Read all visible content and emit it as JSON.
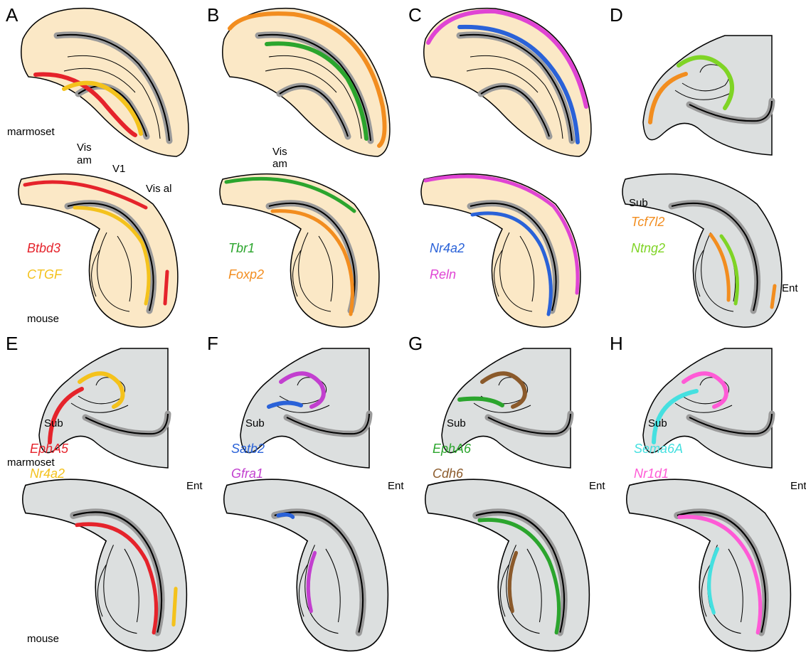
{
  "panels": [
    {
      "letter": "A",
      "species_top": "marmoset",
      "species_bottom": "mouse",
      "genes": [
        {
          "name": "Btbd3",
          "color": "#e5232b"
        },
        {
          "name": "CTGF",
          "color": "#f4c21c"
        }
      ],
      "areas": [
        "Vis",
        "am",
        "V1",
        "Vis al"
      ]
    },
    {
      "letter": "B",
      "genes": [
        {
          "name": "Tbr1",
          "color": "#2ba52d"
        },
        {
          "name": "Foxp2",
          "color": "#f28d1f"
        }
      ],
      "areas": [
        "Vis",
        "am"
      ]
    },
    {
      "letter": "C",
      "genes": [
        {
          "name": "Nr4a2",
          "color": "#2a62d8"
        },
        {
          "name": "Reln",
          "color": "#e044d4"
        }
      ],
      "areas": []
    },
    {
      "letter": "D",
      "genes": [
        {
          "name": "Tcf7l2",
          "color": "#f28d1f"
        },
        {
          "name": "Ntng2",
          "color": "#7fd425"
        }
      ],
      "areas": [
        "Sub",
        "Ent"
      ]
    },
    {
      "letter": "E",
      "species_top": "marmoset",
      "species_bottom": "mouse",
      "genes": [
        {
          "name": "EphA5",
          "color": "#e5232b"
        },
        {
          "name": "Nr4a2",
          "color": "#f4c21c"
        }
      ],
      "areas": [
        "Sub",
        "Ent"
      ]
    },
    {
      "letter": "F",
      "genes": [
        {
          "name": "Satb2",
          "color": "#2a62d8"
        },
        {
          "name": "Gfra1",
          "color": "#c23fcf"
        }
      ],
      "areas": [
        "Sub",
        "Ent"
      ]
    },
    {
      "letter": "G",
      "genes": [
        {
          "name": "EphA6",
          "color": "#2ba52d"
        },
        {
          "name": "Cdh6",
          "color": "#8b5a2b"
        }
      ],
      "areas": [
        "Sub",
        "Ent"
      ]
    },
    {
      "letter": "H",
      "genes": [
        {
          "name": "Sema6A",
          "color": "#45e0e0"
        },
        {
          "name": "Nr1d1",
          "color": "#ff5ad6"
        }
      ],
      "areas": [
        "Sub",
        "Ent"
      ]
    }
  ]
}
